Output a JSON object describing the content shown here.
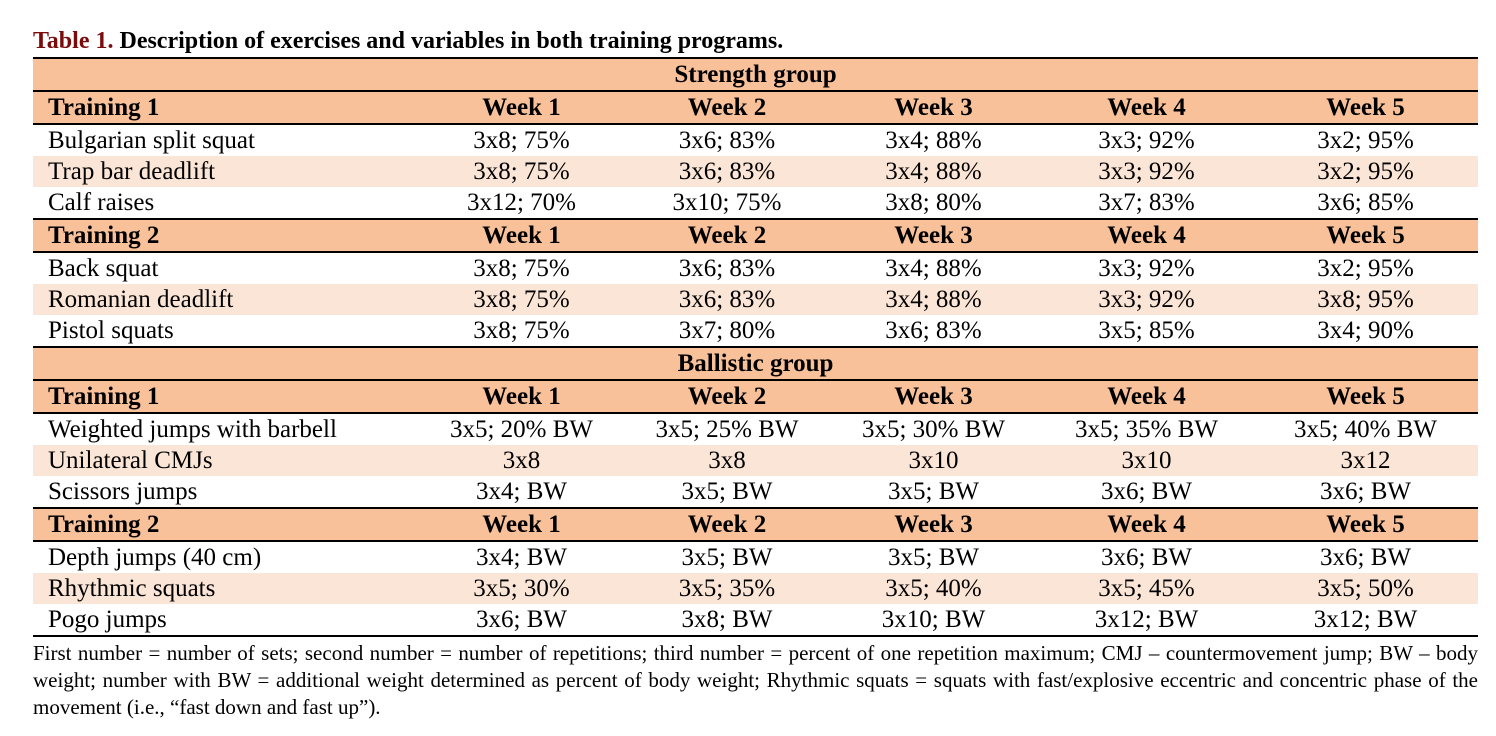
{
  "caption": {
    "number": "Table 1.",
    "text": "Description of exercises and variables in both training programs."
  },
  "header_weeks": [
    "Week 1",
    "Week 2",
    "Week 3",
    "Week 4",
    "Week 5"
  ],
  "groups": [
    {
      "name": "Strength group",
      "trainings": [
        {
          "label": "Training 1",
          "rows": [
            {
              "exercise": "Bulgarian split squat",
              "values": [
                "3x8; 75%",
                "3x6; 83%",
                "3x4; 88%",
                "3x3; 92%",
                "3x2; 95%"
              ]
            },
            {
              "exercise": "Trap bar deadlift",
              "values": [
                "3x8; 75%",
                "3x6; 83%",
                "3x4; 88%",
                "3x3; 92%",
                "3x2; 95%"
              ]
            },
            {
              "exercise": "Calf raises",
              "values": [
                "3x12; 70%",
                "3x10; 75%",
                "3x8; 80%",
                "3x7; 83%",
                "3x6; 85%"
              ]
            }
          ]
        },
        {
          "label": "Training 2",
          "rows": [
            {
              "exercise": "Back squat",
              "values": [
                "3x8; 75%",
                "3x6; 83%",
                "3x4; 88%",
                "3x3; 92%",
                "3x2; 95%"
              ]
            },
            {
              "exercise": "Romanian deadlift",
              "values": [
                "3x8; 75%",
                "3x6; 83%",
                "3x4; 88%",
                "3x3; 92%",
                "3x8; 95%"
              ]
            },
            {
              "exercise": "Pistol squats",
              "values": [
                "3x8; 75%",
                "3x7; 80%",
                "3x6; 83%",
                "3x5; 85%",
                "3x4; 90%"
              ]
            }
          ]
        }
      ]
    },
    {
      "name": "Ballistic group",
      "trainings": [
        {
          "label": "Training 1",
          "rows": [
            {
              "exercise": "Weighted jumps with barbell",
              "values": [
                "3x5; 20% BW",
                "3x5; 25% BW",
                "3x5; 30% BW",
                "3x5; 35% BW",
                "3x5; 40% BW"
              ]
            },
            {
              "exercise": "Unilateral CMJs",
              "values": [
                "3x8",
                "3x8",
                "3x10",
                "3x10",
                "3x12"
              ]
            },
            {
              "exercise": "Scissors jumps",
              "values": [
                "3x4; BW",
                "3x5; BW",
                "3x5; BW",
                "3x6; BW",
                "3x6; BW"
              ]
            }
          ]
        },
        {
          "label": "Training 2",
          "rows": [
            {
              "exercise": "Depth jumps (40 cm)",
              "values": [
                "3x4; BW",
                "3x5; BW",
                "3x5; BW",
                "3x6; BW",
                "3x6; BW"
              ]
            },
            {
              "exercise": "Rhythmic squats",
              "values": [
                "3x5; 30%",
                "3x5; 35%",
                "3x5; 40%",
                "3x5; 45%",
                "3x5; 50%"
              ]
            },
            {
              "exercise": "Pogo jumps",
              "values": [
                "3x6; BW",
                "3x8; BW",
                "3x10; BW",
                "3x12; BW",
                "3x12; BW"
              ]
            }
          ]
        }
      ]
    }
  ],
  "footnote": "First number = number of sets; second number = number of repetitions; third number = percent of one repetition maximum; CMJ – countermovement jump; BW – body weight; number with BW = additional weight determined as percent of body weight; Rhythmic squats = squats with fast/explosive eccentric and concentric phase of the movement (i.e., “fast down and fast up”).",
  "colors": {
    "header_fill": "#f8c19a",
    "alt_row_fill": "#fbe5d6",
    "caption_number": "#7b0c0c"
  }
}
